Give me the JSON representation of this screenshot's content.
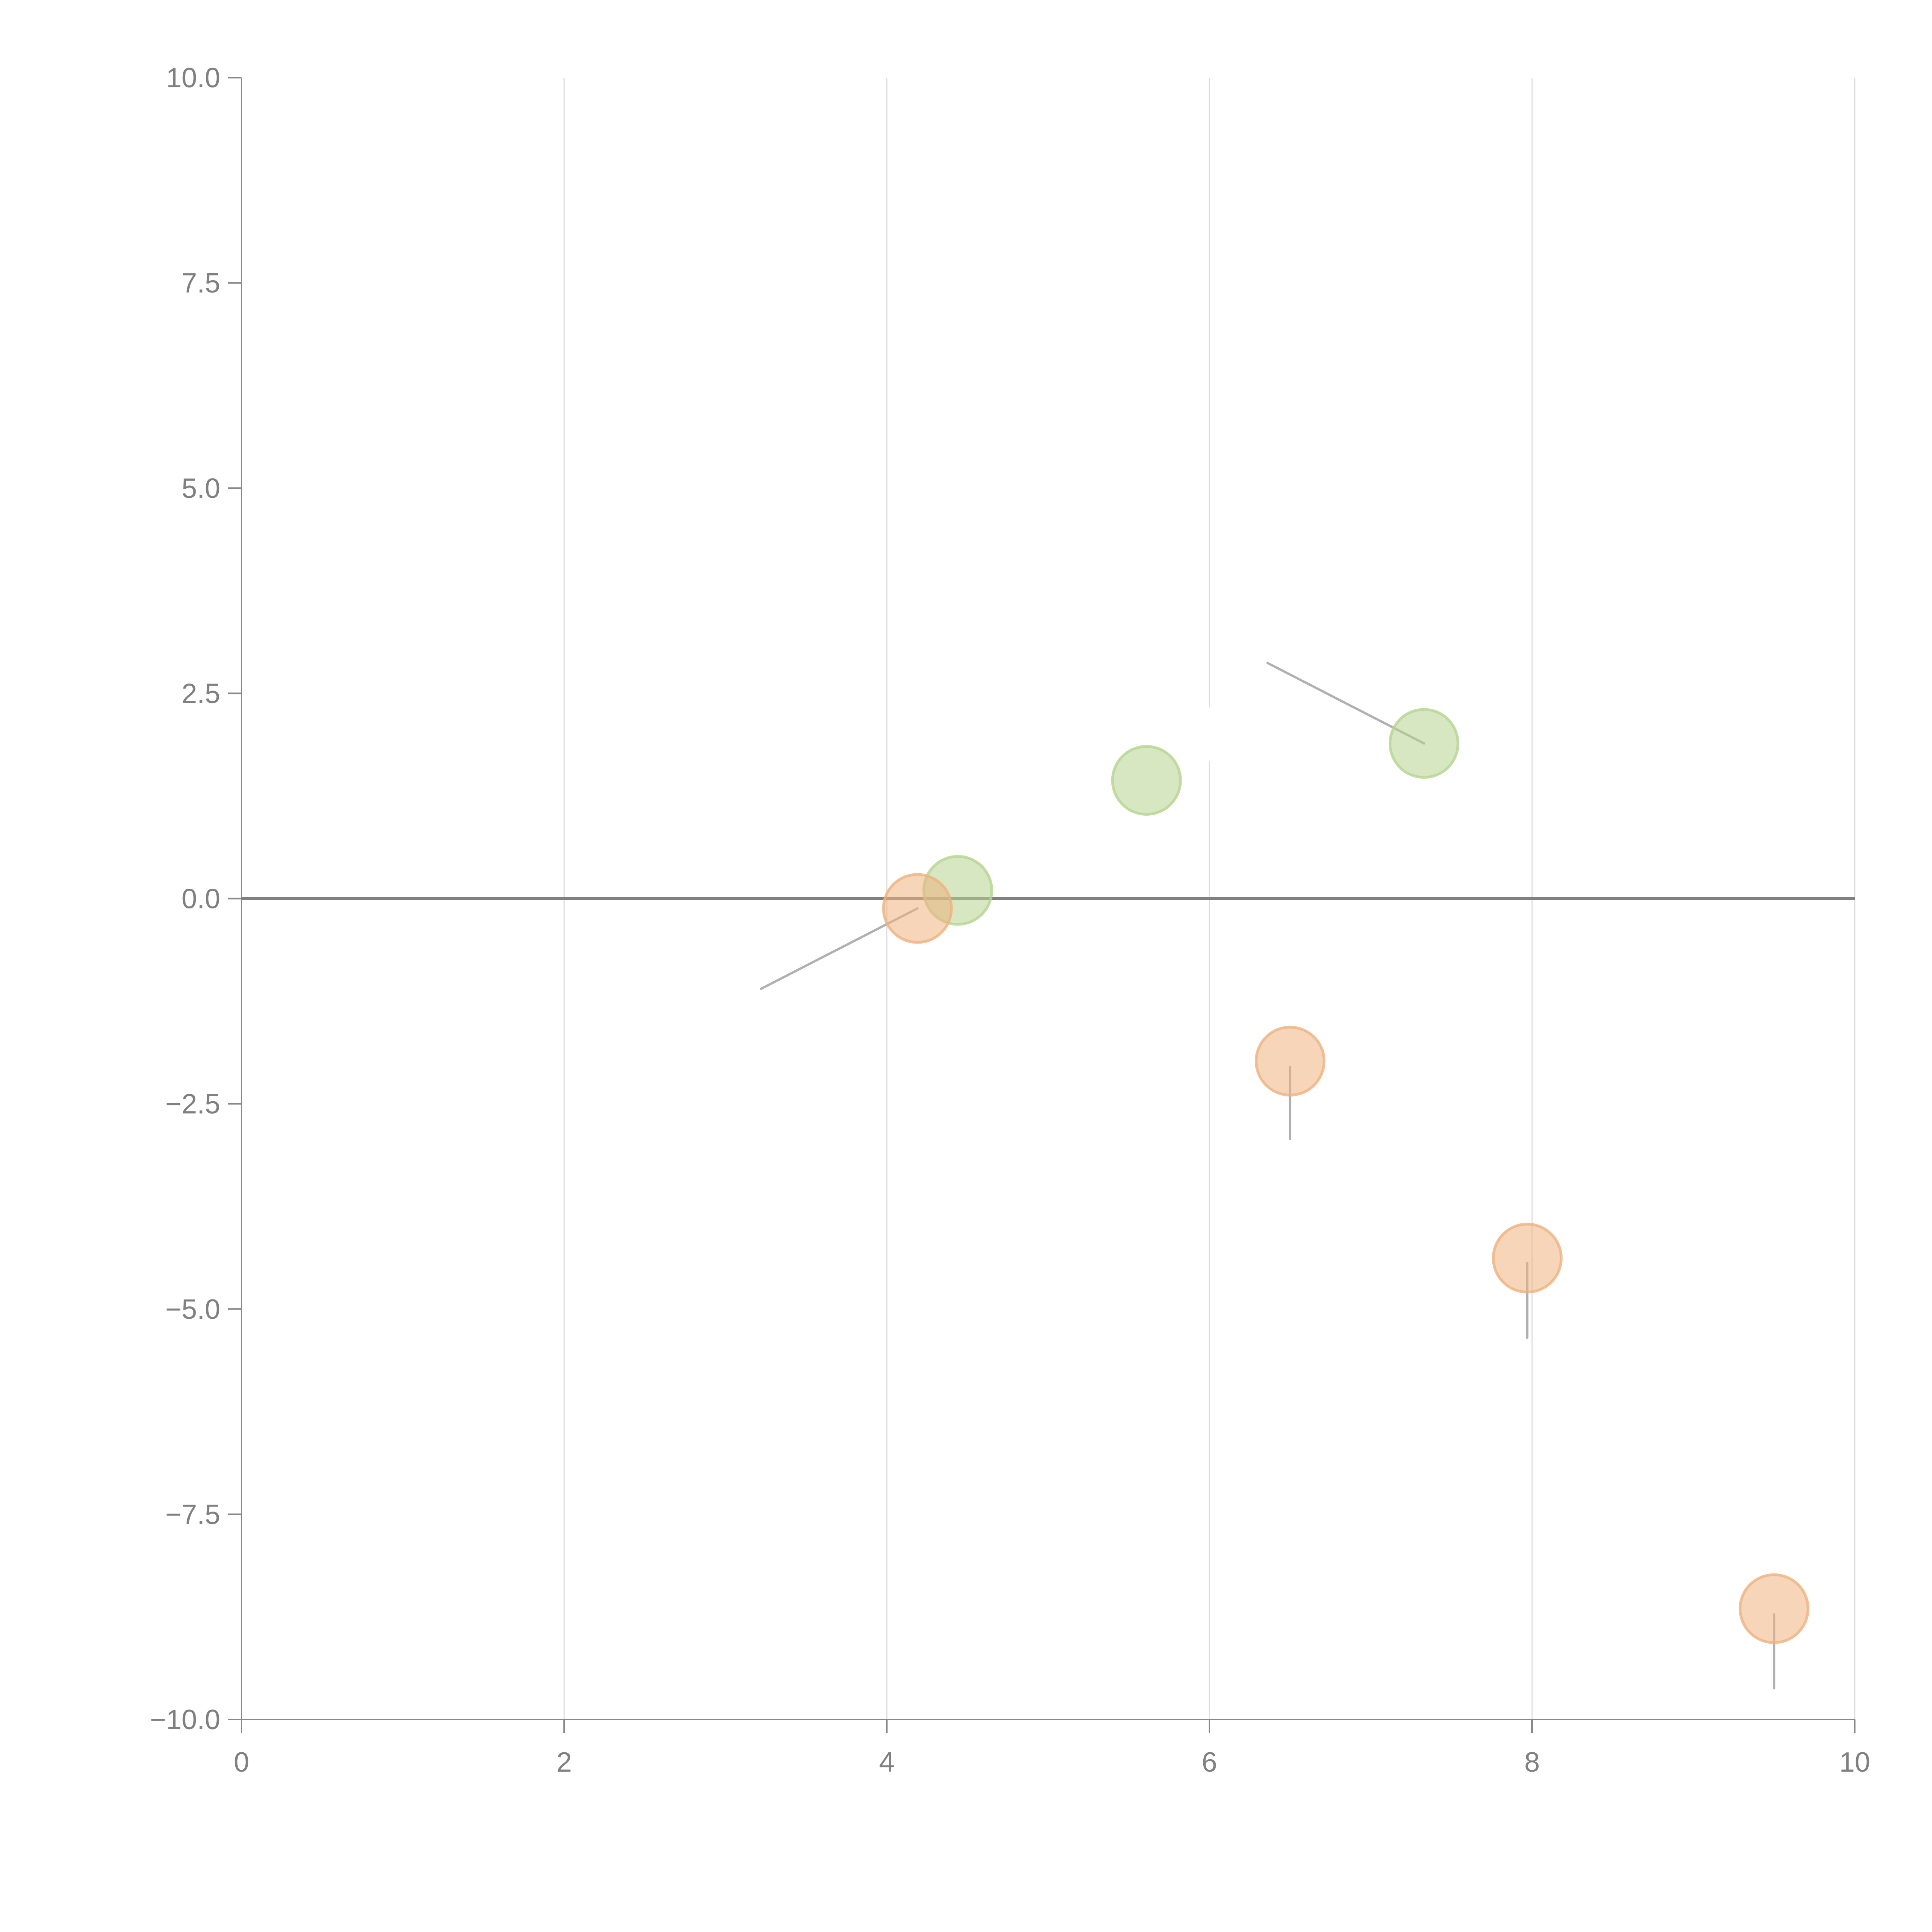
{
  "chart_data": {
    "type": "scatter",
    "title": "",
    "xlabel": "",
    "ylabel": "",
    "xlim": [
      0,
      10
    ],
    "ylim": [
      -10,
      10
    ],
    "grid": "vertical",
    "x_ticks": [
      "0",
      "2",
      "4",
      "6",
      "8",
      "10"
    ],
    "x_tick_values": [
      0,
      2,
      4,
      6,
      8,
      10
    ],
    "y_ticks": [
      "10.0",
      "7.5",
      "5.0",
      "2.5",
      "0.0",
      "−2.5",
      "−5.0",
      "−7.5",
      "−10.0"
    ],
    "y_tick_values": [
      10,
      7.5,
      5,
      2.5,
      0,
      -2.5,
      -5,
      -7.5,
      -10
    ],
    "zero_line": 0,
    "series": [
      {
        "name": "green",
        "color": "#b5d490",
        "points": [
          {
            "x": 4.44,
            "y": 0.1
          },
          {
            "x": 5.61,
            "y": 1.44
          },
          {
            "x": 7.33,
            "y": 1.89
          }
        ]
      },
      {
        "name": "orange",
        "color": "#eeb27f",
        "points": [
          {
            "x": 4.19,
            "y": -0.12
          },
          {
            "x": 6.5,
            "y": -1.98
          },
          {
            "x": 7.97,
            "y": -4.38
          },
          {
            "x": 9.5,
            "y": -8.65
          }
        ]
      }
    ],
    "annotation_lines": [
      {
        "from": [
          4.19,
          -0.12
        ],
        "to": [
          3.22,
          -1.1
        ],
        "color": "#b0b0b0"
      },
      {
        "from": [
          7.33,
          1.89
        ],
        "to": [
          6.36,
          2.87
        ],
        "color": "#b0b0b0"
      },
      {
        "from": [
          6.5,
          -2.05
        ],
        "to": [
          6.5,
          -2.93
        ],
        "color": "#b0b0b0"
      },
      {
        "from": [
          7.97,
          -4.44
        ],
        "to": [
          7.97,
          -5.35
        ],
        "color": "#b0b0b0"
      },
      {
        "from": [
          9.5,
          -8.72
        ],
        "to": [
          9.5,
          -9.62
        ],
        "color": "#b0b0b0"
      },
      {
        "from": [
          5.65,
          1.75
        ],
        "to": [
          5.72,
          2.05
        ],
        "color": "#ffffff"
      },
      {
        "from": [
          4.47,
          0.48
        ],
        "to": [
          4.49,
          0.65
        ],
        "color": "#ffffff"
      },
      {
        "from": [
          6.0,
          2.3
        ],
        "to": [
          6.0,
          1.7
        ],
        "color": "#ffffff"
      }
    ]
  }
}
